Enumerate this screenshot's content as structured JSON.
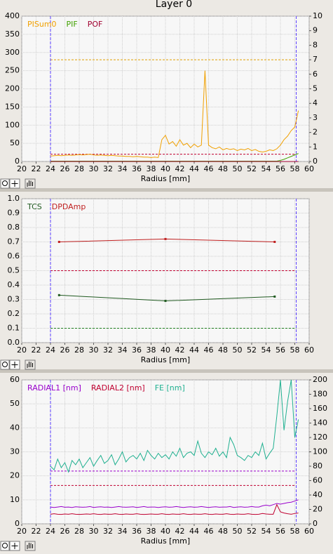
{
  "title": "Layer 0",
  "chart_data": [
    {
      "type": "line",
      "x_label": "Radius [mm]",
      "xlim": [
        20,
        60
      ],
      "xticks": [
        20,
        22,
        24,
        26,
        28,
        30,
        32,
        34,
        36,
        38,
        40,
        42,
        44,
        46,
        48,
        50,
        52,
        54,
        56,
        58,
        60
      ],
      "ylim": [
        0,
        400
      ],
      "yticks": [
        0,
        50,
        100,
        150,
        200,
        250,
        300,
        350,
        400
      ],
      "y2lim": [
        0,
        10
      ],
      "y2ticks": [
        0,
        1,
        2,
        3,
        4,
        5,
        6,
        7,
        8,
        9,
        10
      ],
      "grid": true,
      "x_markers": [
        24,
        58.2
      ],
      "x_marker_color": "#5a3cff",
      "reference_lines": [
        {
          "value": 280,
          "color": "#e0a000"
        },
        {
          "value": 20,
          "color": "#c00030"
        }
      ],
      "x": [
        24,
        24.5,
        25,
        25.5,
        26,
        26.5,
        27,
        27.5,
        28,
        28.5,
        29,
        29.5,
        30,
        30.5,
        31,
        31.5,
        32,
        32.5,
        33,
        33.5,
        34,
        34.5,
        35,
        35.5,
        36,
        36.5,
        37,
        37.5,
        38,
        38.5,
        39,
        39.5,
        40,
        40.5,
        41,
        41.5,
        42,
        42.5,
        43,
        43.5,
        44,
        44.5,
        45,
        45.5,
        46,
        46.5,
        47,
        47.5,
        48,
        48.5,
        49,
        49.5,
        50,
        50.5,
        51,
        51.5,
        52,
        52.5,
        53,
        53.5,
        54,
        54.5,
        55,
        55.5,
        56,
        56.5,
        57,
        57.5,
        58,
        58.5
      ],
      "series": [
        {
          "name": "PISum0",
          "color": "#f0a000",
          "values": [
            15,
            16,
            17,
            16,
            17,
            18,
            17,
            18,
            19,
            18,
            19,
            20,
            18,
            17,
            18,
            17,
            16,
            17,
            16,
            15,
            15,
            14,
            14,
            13,
            14,
            13,
            12,
            12,
            11,
            12,
            11,
            60,
            72,
            48,
            55,
            42,
            60,
            45,
            50,
            38,
            48,
            40,
            45,
            250,
            45,
            38,
            35,
            40,
            32,
            36,
            33,
            35,
            30,
            34,
            32,
            36,
            30,
            33,
            28,
            26,
            28,
            32,
            30,
            35,
            45,
            60,
            70,
            85,
            95,
            140
          ]
        },
        {
          "name": "PIF",
          "color": "#40a000",
          "values": [
            1,
            1,
            1,
            1,
            1,
            1,
            1,
            1,
            1,
            1,
            1,
            1,
            1,
            1,
            1,
            1,
            1,
            1,
            1,
            1,
            1,
            1,
            1,
            1,
            1,
            1,
            1,
            1,
            1,
            1,
            1,
            1,
            1,
            1,
            1,
            1,
            1,
            1,
            1,
            1,
            1,
            1,
            1,
            1,
            1,
            1,
            1,
            1,
            1,
            1,
            1,
            1,
            1,
            1,
            1,
            1,
            1,
            1,
            1,
            1,
            1,
            1,
            1,
            1,
            3,
            6,
            10,
            14,
            18,
            22
          ]
        },
        {
          "name": "POF",
          "color": "#a00030",
          "values": [
            0,
            0,
            0,
            0,
            0,
            0,
            0,
            0,
            0,
            0,
            0,
            0,
            0,
            0,
            0,
            0,
            0,
            0,
            0,
            0,
            0,
            0,
            0,
            0,
            0,
            0,
            0,
            0,
            0,
            0,
            0,
            0,
            0,
            0,
            0,
            0,
            0,
            0,
            0,
            0,
            0,
            0,
            0,
            0,
            0,
            0,
            0,
            0,
            0,
            0,
            0,
            0,
            0,
            0,
            0,
            0,
            0,
            0,
            0,
            0,
            0,
            0,
            0,
            0,
            0,
            0,
            0,
            0,
            0,
            0
          ]
        }
      ]
    },
    {
      "type": "line",
      "x_label": "Radius [mm]",
      "markers": true,
      "xlim": [
        20,
        60
      ],
      "xticks": [
        20,
        22,
        24,
        26,
        28,
        30,
        32,
        34,
        36,
        38,
        40,
        42,
        44,
        46,
        48,
        50,
        52,
        54,
        56,
        58,
        60
      ],
      "ylim": [
        0,
        1
      ],
      "yticks": [
        {
          "value": 0,
          "label": "0.0"
        },
        0.1,
        0.2,
        0.3,
        0.4,
        0.5,
        0.6,
        0.7,
        0.8,
        0.9,
        {
          "value": 1,
          "label": "1.0"
        }
      ],
      "grid": true,
      "x_markers": [
        24,
        58.2
      ],
      "x_marker_color": "#5a3cff",
      "reference_lines": [
        {
          "value": 0.5,
          "color": "#c00030"
        },
        {
          "value": 0.1,
          "color": "#208020"
        }
      ],
      "x": [
        25.2,
        40,
        55.2
      ],
      "series": [
        {
          "name": "TCS",
          "color": "#205a20",
          "values": [
            0.33,
            0.29,
            0.32
          ]
        },
        {
          "name": "DPDAmp",
          "color": "#c02020",
          "values": [
            0.7,
            0.72,
            0.7
          ]
        }
      ]
    },
    {
      "type": "line",
      "x_label": "Radius [mm]",
      "xlim": [
        20,
        60
      ],
      "xticks": [
        20,
        22,
        24,
        26,
        28,
        30,
        32,
        34,
        36,
        38,
        40,
        42,
        44,
        46,
        48,
        50,
        52,
        54,
        56,
        58,
        60
      ],
      "ylim": [
        0,
        60
      ],
      "yticks": [
        0,
        10,
        20,
        30,
        40,
        50,
        60
      ],
      "y2lim": [
        0,
        200
      ],
      "y2ticks": [
        0,
        20,
        40,
        60,
        80,
        100,
        120,
        140,
        160,
        180,
        200
      ],
      "grid": true,
      "x_markers": [
        24,
        58.2
      ],
      "x_marker_color": "#5a3cff",
      "reference_lines": [
        {
          "value": 22,
          "color": "#9900cc"
        },
        {
          "value": 16,
          "color": "#c00030"
        }
      ],
      "x": [
        24,
        24.5,
        25,
        25.5,
        26,
        26.5,
        27,
        27.5,
        28,
        28.5,
        29,
        29.5,
        30,
        30.5,
        31,
        31.5,
        32,
        32.5,
        33,
        33.5,
        34,
        34.5,
        35,
        35.5,
        36,
        36.5,
        37,
        37.5,
        38,
        38.5,
        39,
        39.5,
        40,
        40.5,
        41,
        41.5,
        42,
        42.5,
        43,
        43.5,
        44,
        44.5,
        45,
        45.5,
        46,
        46.5,
        47,
        47.5,
        48,
        48.5,
        49,
        49.5,
        50,
        50.5,
        51,
        51.5,
        52,
        52.5,
        53,
        53.5,
        54,
        54.5,
        55,
        55.5,
        56,
        56.5,
        57,
        57.5,
        58,
        58.5
      ],
      "series": [
        {
          "name": "RADIAL1 [nm]",
          "color": "#9900cc",
          "values": [
            7,
            6.8,
            7,
            7.2,
            6.9,
            7,
            6.8,
            7.1,
            7,
            6.9,
            7,
            7.2,
            6.8,
            7,
            7.1,
            6.9,
            7,
            6.8,
            7,
            7.2,
            7,
            6.9,
            7,
            7.1,
            6.8,
            7,
            7.2,
            6.9,
            7,
            7,
            6.8,
            7,
            7.1,
            6.9,
            7,
            7.2,
            7,
            6.8,
            7,
            7.1,
            6.9,
            7,
            7.2,
            7,
            6.8,
            7,
            7.1,
            6.9,
            7,
            7,
            7.2,
            6.8,
            7,
            7.1,
            6.9,
            7,
            7.2,
            7,
            7,
            7.5,
            7.8,
            7.5,
            8,
            8.5,
            8.2,
            8.5,
            8.8,
            9,
            9.5,
            10
          ]
        },
        {
          "name": "RADIAL2 [nm]",
          "color": "#c00030",
          "values": [
            4,
            4.2,
            4,
            3.9,
            4.1,
            4,
            4.2,
            4,
            3.9,
            4,
            4.1,
            4,
            4.2,
            4,
            3.9,
            4.1,
            4,
            4,
            4.2,
            4,
            3.9,
            4.1,
            4,
            4,
            4.2,
            4,
            3.9,
            4,
            4.1,
            4,
            4,
            4.2,
            4,
            3.9,
            4.1,
            4,
            4,
            4.2,
            4,
            3.9,
            4.1,
            4,
            4,
            4.2,
            4,
            3.9,
            4.1,
            4,
            4,
            4.2,
            4,
            3.9,
            4.1,
            4,
            4,
            4.2,
            4,
            3.9,
            4,
            4.3,
            4.1,
            4,
            4,
            8,
            5,
            4.5,
            4.2,
            4,
            4.3,
            4.5
          ]
        },
        {
          "name": "FE [nm]",
          "color": "#20b090",
          "axis": "y2",
          "values": [
            80,
            75,
            90,
            78,
            85,
            72,
            88,
            82,
            90,
            78,
            85,
            92,
            80,
            88,
            95,
            84,
            88,
            96,
            82,
            90,
            100,
            86,
            92,
            95,
            90,
            98,
            88,
            102,
            95,
            90,
            98,
            92,
            96,
            90,
            100,
            94,
            105,
            92,
            98,
            100,
            95,
            115,
            98,
            92,
            100,
            96,
            105,
            94,
            100,
            92,
            120,
            110,
            95,
            92,
            88,
            95,
            92,
            100,
            95,
            112,
            90,
            98,
            105,
            150,
            200,
            130,
            170,
            200,
            120,
            145
          ]
        }
      ]
    }
  ]
}
